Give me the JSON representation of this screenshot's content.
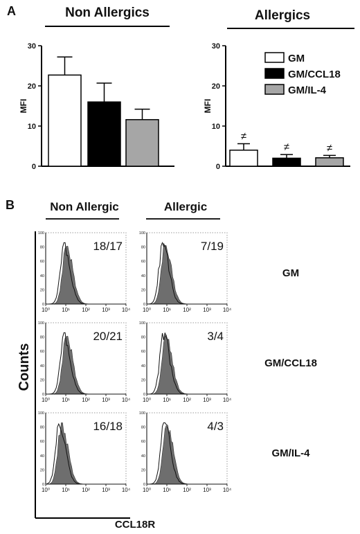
{
  "panel_a": {
    "letter": "A",
    "left_title": "Non Allergics",
    "right_title": "Allergics",
    "ylabel": "MFI",
    "yticks": [
      "0",
      "10",
      "20",
      "30"
    ],
    "marker": "≠"
  },
  "panel_b": {
    "letter": "B",
    "col_titles": [
      "Non Allergic",
      "Allergic"
    ],
    "row_labels": [
      "GM",
      "GM/CCL18",
      "GM/IL-4"
    ],
    "ylabel": "Counts",
    "xlabel": "CCL18R",
    "hist_yticks": [
      "0",
      "20",
      "40",
      "60",
      "80",
      "100"
    ],
    "hist_xticks": [
      "10⁰",
      "10¹",
      "10²",
      "10³",
      "10⁴"
    ],
    "values": [
      [
        "18/17",
        "7/19"
      ],
      [
        "20/21",
        "3/4"
      ],
      [
        "16/18",
        "4/3"
      ]
    ]
  },
  "chart_data": [
    {
      "type": "bar",
      "title": "Non Allergics",
      "ylabel": "MFI",
      "ylim": [
        0,
        30
      ],
      "categories": [
        "GM",
        "GM/CCL18",
        "GM/IL-4"
      ],
      "values": [
        22.7,
        16.0,
        11.6
      ],
      "errors": [
        4.5,
        4.7,
        2.6
      ],
      "colors": [
        "#ffffff",
        "#000000",
        "#a6a6a6"
      ]
    },
    {
      "type": "bar",
      "title": "Allergics",
      "ylabel": "MFI",
      "ylim": [
        0,
        30
      ],
      "categories": [
        "GM",
        "GM/CCL18",
        "GM/IL-4"
      ],
      "values": [
        4.0,
        2.0,
        2.1
      ],
      "errors": [
        1.6,
        0.9,
        0.6
      ],
      "colors": [
        "#ffffff",
        "#000000",
        "#a6a6a6"
      ],
      "legend": [
        "GM",
        "GM/CCL18",
        "GM/IL-4"
      ],
      "legend_position": "top-right",
      "annotation": "≠"
    }
  ]
}
